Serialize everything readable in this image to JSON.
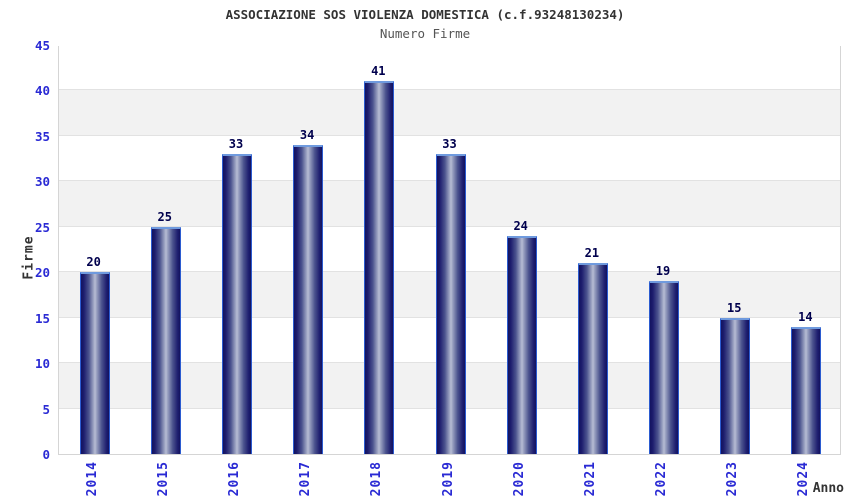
{
  "header": {
    "title": "ASSOCIAZIONE SOS VIOLENZA DOMESTICA (c.f.93248130234)",
    "subtitle": "Numero Firme"
  },
  "chart_data": {
    "type": "bar",
    "title": "ASSOCIAZIONE SOS VIOLENZA DOMESTICA (c.f.93248130234)",
    "subtitle": "Numero Firme",
    "categories": [
      "2014",
      "2015",
      "2016",
      "2017",
      "2018",
      "2019",
      "2020",
      "2021",
      "2022",
      "2023",
      "2024"
    ],
    "values": [
      20,
      25,
      33,
      34,
      41,
      33,
      24,
      21,
      19,
      15,
      14
    ],
    "xlabel": "Anno",
    "ylabel": "Firme",
    "ylim": [
      0,
      45
    ],
    "ytick_step": 5,
    "yticks": [
      0,
      5,
      10,
      15,
      20,
      25,
      30,
      35,
      40,
      45
    ],
    "grid": "horizontal-bands",
    "legend_position": "none",
    "colors": {
      "bar_dark": "#13135f",
      "bar_highlight": "#b7bdd4",
      "bar_border": "#2b5bd0",
      "bar_top_border": "#6f9ade",
      "band_gray": "#f2f2f2",
      "band_white": "#ffffff",
      "gridline": "#e2e2e2",
      "plot_border": "#d5d5d5",
      "tick_label": "#2a2ad4",
      "value_label": "#00004d",
      "title_text": "#333333",
      "subtitle_text": "#555555"
    }
  }
}
